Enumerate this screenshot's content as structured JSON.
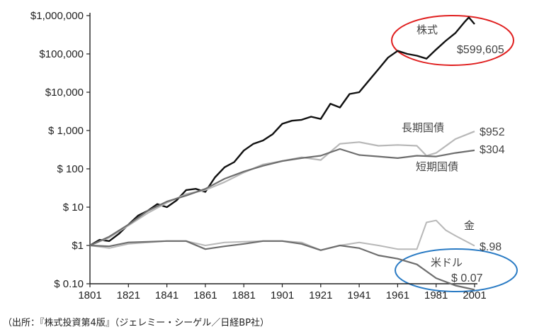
{
  "chart_data": {
    "type": "line",
    "y_scale": "log",
    "ylim": [
      0.1,
      1000000
    ],
    "xlim": [
      1801,
      2001
    ],
    "x_ticks": [
      1801,
      1821,
      1841,
      1861,
      1881,
      1901,
      1921,
      1941,
      1961,
      1981,
      2001
    ],
    "y_ticks": [
      {
        "value": 1000000,
        "label": "$1,000,000"
      },
      {
        "value": 100000,
        "label": "$100,000"
      },
      {
        "value": 10000,
        "label": "$10,000"
      },
      {
        "value": 1000,
        "label": "$ 1,000"
      },
      {
        "value": 100,
        "label": "$ 100"
      },
      {
        "value": 10,
        "label": "$ 10"
      },
      {
        "value": 1,
        "label": "$1"
      },
      {
        "value": 0.1,
        "label": "$ 0.10"
      }
    ],
    "grid": false,
    "series": [
      {
        "name": "株式",
        "color": "#111111",
        "end_label": "$599,605",
        "highlight": "#e02020",
        "x": [
          1801,
          1806,
          1811,
          1816,
          1821,
          1826,
          1831,
          1836,
          1841,
          1846,
          1851,
          1856,
          1861,
          1866,
          1871,
          1876,
          1881,
          1886,
          1891,
          1896,
          1901,
          1906,
          1911,
          1916,
          1921,
          1926,
          1931,
          1936,
          1941,
          1946,
          1951,
          1956,
          1961,
          1966,
          1971,
          1976,
          1981,
          1986,
          1991,
          1996,
          1998,
          2001
        ],
        "y": [
          1,
          1.4,
          1.3,
          2,
          3.5,
          6,
          8,
          12,
          10,
          15,
          28,
          30,
          25,
          60,
          110,
          150,
          300,
          450,
          550,
          800,
          1500,
          1800,
          1900,
          2300,
          2000,
          5000,
          4000,
          9000,
          10000,
          20000,
          40000,
          80000,
          120000,
          100000,
          90000,
          75000,
          130000,
          220000,
          350000,
          700000,
          900000,
          600000
        ]
      },
      {
        "name": "長期国債",
        "color": "#b8b8b8",
        "end_label": "$952",
        "x": [
          1801,
          1811,
          1821,
          1831,
          1841,
          1851,
          1861,
          1871,
          1881,
          1891,
          1901,
          1911,
          1921,
          1931,
          1941,
          1951,
          1961,
          1971,
          1976,
          1981,
          1991,
          2001
        ],
        "y": [
          1,
          1.6,
          3.3,
          7,
          13,
          22,
          28,
          45,
          80,
          130,
          160,
          200,
          170,
          450,
          500,
          400,
          420,
          400,
          220,
          260,
          600,
          952
        ]
      },
      {
        "name": "短期国債",
        "color": "#6e6e6e",
        "end_label": "$304",
        "x": [
          1801,
          1811,
          1821,
          1831,
          1841,
          1851,
          1861,
          1871,
          1881,
          1891,
          1901,
          1911,
          1921,
          1931,
          1941,
          1951,
          1961,
          1971,
          1981,
          1991,
          2001
        ],
        "y": [
          1,
          1.7,
          3.5,
          8,
          14,
          20,
          30,
          55,
          85,
          120,
          160,
          190,
          220,
          330,
          230,
          210,
          190,
          220,
          210,
          260,
          304
        ]
      },
      {
        "name": "金",
        "color": "#b8b8b8",
        "end_label": "$.98",
        "x": [
          1801,
          1811,
          1821,
          1831,
          1841,
          1851,
          1861,
          1871,
          1881,
          1891,
          1901,
          1911,
          1921,
          1931,
          1941,
          1951,
          1961,
          1971,
          1976,
          1981,
          1986,
          1991,
          2001
        ],
        "y": [
          1,
          0.85,
          1.1,
          1.2,
          1.3,
          1.3,
          1.0,
          1.2,
          1.25,
          1.3,
          1.3,
          1.2,
          0.75,
          1.0,
          1.2,
          1.0,
          0.8,
          0.8,
          4.0,
          4.5,
          2.5,
          1.8,
          0.98
        ]
      },
      {
        "name": "米ドル",
        "color": "#6e6e6e",
        "end_label": "$ 0.07",
        "highlight": "#2a7bc4",
        "x": [
          1801,
          1811,
          1821,
          1831,
          1841,
          1851,
          1861,
          1871,
          1881,
          1891,
          1901,
          1911,
          1921,
          1931,
          1941,
          1951,
          1961,
          1971,
          1981,
          1991,
          2001
        ],
        "y": [
          1,
          0.95,
          1.2,
          1.25,
          1.3,
          1.3,
          0.8,
          0.95,
          1.1,
          1.3,
          1.3,
          1.1,
          0.75,
          1.0,
          0.85,
          0.55,
          0.45,
          0.32,
          0.14,
          0.09,
          0.07
        ]
      }
    ]
  },
  "source_note": "（出所：『株式投資第4版』（ジェレミー・シーゲル／日経BP社）"
}
